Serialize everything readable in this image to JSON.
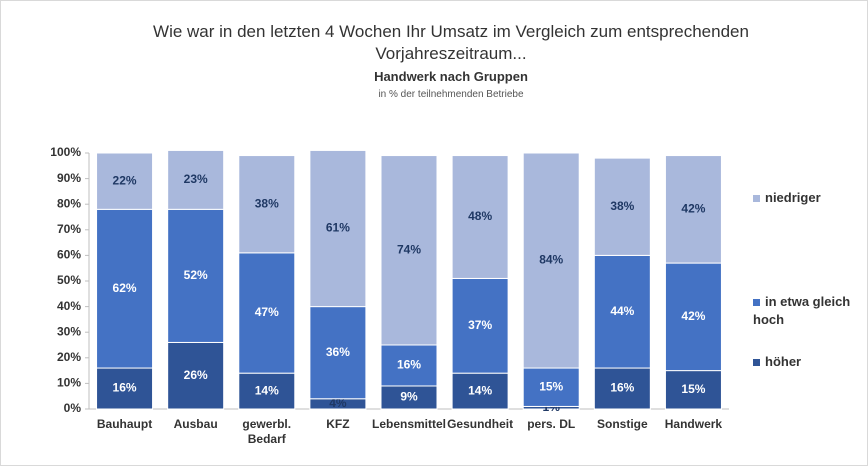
{
  "chart_data": {
    "type": "stacked_bar",
    "title": "Wie war in den letzten 4 Wochen Ihr Umsatz im Vergleich zum entsprechenden Vorjahreszeitraum...",
    "subtitle": "Handwerk nach Gruppen",
    "note": "in % der teilnehmenden Betriebe",
    "categories": [
      "Bauhaupt",
      "Ausbau",
      "gewerbl. Bedarf",
      "KFZ",
      "Lebensmittel",
      "Gesundheit",
      "pers. DL",
      "Sonstige",
      "Handwerk"
    ],
    "series": [
      {
        "name": "höher",
        "color": "#2f5496",
        "values": [
          16,
          26,
          14,
          4,
          9,
          14,
          1,
          16,
          15
        ],
        "value_labels": [
          "16%",
          "26%",
          "14%",
          "4%",
          "9%",
          "14%",
          "1%",
          "16%",
          "15%"
        ]
      },
      {
        "name": "in etwa gleich hoch",
        "color": "#4472c4",
        "values": [
          62,
          52,
          47,
          36,
          16,
          37,
          15,
          44,
          42
        ],
        "value_labels": [
          "62%",
          "52%",
          "47%",
          "36%",
          "16%",
          "37%",
          "15%",
          "44%",
          "42%"
        ]
      },
      {
        "name": "niedriger",
        "color": "#a9b8dc",
        "values": [
          22,
          23,
          38,
          61,
          74,
          48,
          84,
          38,
          42
        ],
        "value_labels": [
          "22%",
          "23%",
          "38%",
          "61%",
          "74%",
          "48%",
          "84%",
          "38%",
          "42%"
        ]
      }
    ],
    "ylim": [
      0,
      100
    ],
    "yticks": [
      {
        "value": 0,
        "label": "0%"
      },
      {
        "value": 10,
        "label": "10%"
      },
      {
        "value": 20,
        "label": "20%"
      },
      {
        "value": 30,
        "label": "30%"
      },
      {
        "value": 40,
        "label": "40%"
      },
      {
        "value": 50,
        "label": "50%"
      },
      {
        "value": 60,
        "label": "60%"
      },
      {
        "value": 70,
        "label": "70%"
      },
      {
        "value": 80,
        "label": "80%"
      },
      {
        "value": 90,
        "label": "90%"
      },
      {
        "value": 100,
        "label": "100%"
      }
    ],
    "legend": "right"
  }
}
